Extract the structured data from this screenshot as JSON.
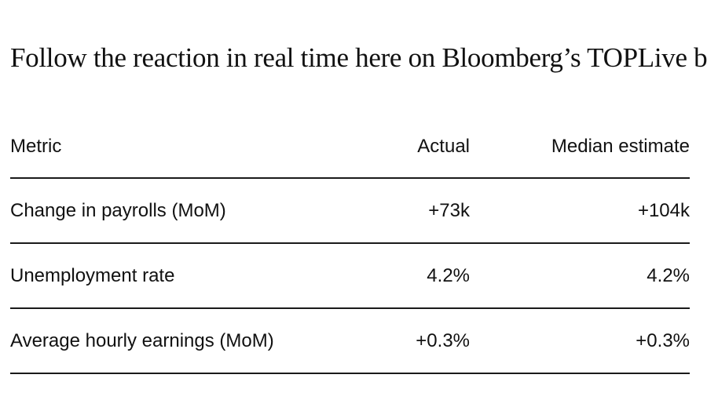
{
  "headline": "Follow the reaction in real time here on Bloomberg’s TOPLive blog",
  "table": {
    "columns": [
      "Metric",
      "Actual",
      "Median estimate"
    ],
    "rows": [
      {
        "metric": "Change in payrolls (MoM)",
        "actual": "+73k",
        "median": "+104k"
      },
      {
        "metric": "Unemployment rate",
        "actual": "4.2%",
        "median": "4.2%"
      },
      {
        "metric": "Average hourly earnings (MoM)",
        "actual": "+0.3%",
        "median": "+0.3%"
      }
    ]
  }
}
